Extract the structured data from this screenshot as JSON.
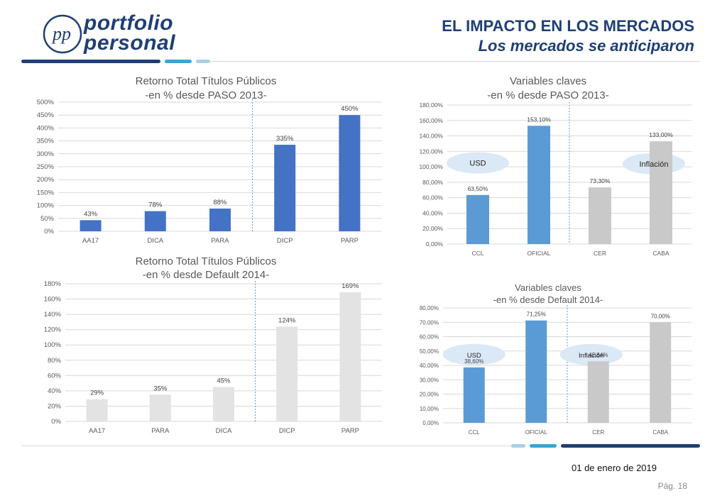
{
  "header": {
    "logo_line1": "portfolio",
    "logo_line2": "personal",
    "logo_monogram": "pp",
    "title": "EL IMPACTO EN LOS MERCADOS",
    "subtitle": "Los mercados se anticiparon"
  },
  "footer": {
    "date": "01 de enero de 2019",
    "page": "Pág. 18"
  },
  "colors": {
    "brand_dark": "#1f3f74",
    "brand_light": "#3ba3d9",
    "brand_pale": "#a9cfe4",
    "bar_blue": "#5b9bd5",
    "bar_gray": "#c9c9c9",
    "bar_lightgray": "#e3e3e3",
    "bubble": "#dbe8f6"
  },
  "chart_data": [
    {
      "type": "bar",
      "title": "Retorno Total Títulos Públicos",
      "subtitle": "-en % desde PASO 2013-",
      "categories": [
        "AA17",
        "DICA",
        "PARA",
        "DICP",
        "PARP"
      ],
      "values": [
        43,
        78,
        88,
        335,
        450
      ],
      "value_labels": [
        "43%",
        "78%",
        "88%",
        "335%",
        "450%"
      ],
      "ylim": [
        0,
        500
      ],
      "yticks": [
        "0%",
        "50%",
        "100%",
        "150%",
        "200%",
        "250%",
        "300%",
        "350%",
        "400%",
        "450%",
        "500%"
      ],
      "grid": true,
      "color": "#4472c4",
      "divider_between": [
        2,
        3
      ],
      "bubbles": []
    },
    {
      "type": "bar",
      "title": "Variables claves",
      "subtitle": "-en % desde PASO 2013-",
      "categories": [
        "CCL",
        "OFICIAL",
        "CER",
        "CABA"
      ],
      "values": [
        63.5,
        153.1,
        73.3,
        133.0
      ],
      "value_labels": [
        "63,50%",
        "153,10%",
        "73,30%",
        "133,00%"
      ],
      "ylim": [
        0,
        180
      ],
      "yticks": [
        "0,00%",
        "20,00%",
        "40,00%",
        "60,00%",
        "80,00%",
        "100,00%",
        "120,00%",
        "140,00%",
        "160,00%",
        "180,00%"
      ],
      "grid": true,
      "colors": [
        "#5b9bd5",
        "#5b9bd5",
        "#c9c9c9",
        "#c9c9c9"
      ],
      "divider_between": [
        1,
        2
      ],
      "bubbles": [
        {
          "label": "USD",
          "category_index": 0,
          "value": 105
        },
        {
          "label": "Inflación",
          "category_index": 3,
          "value": 104
        }
      ]
    },
    {
      "type": "bar",
      "title": "Retorno Total Títulos Públicos",
      "subtitle": "-en % desde Default 2014-",
      "categories": [
        "AA17",
        "PARA",
        "DICA",
        "DICP",
        "PARP"
      ],
      "values": [
        29,
        35,
        45,
        124,
        169
      ],
      "value_labels": [
        "29%",
        "35%",
        "45%",
        "124%",
        "169%"
      ],
      "ylim": [
        0,
        180
      ],
      "yticks": [
        "0%",
        "20%",
        "40%",
        "60%",
        "80%",
        "100%",
        "120%",
        "140%",
        "160%",
        "180%"
      ],
      "grid": true,
      "color": "#e3e3e3",
      "divider_between": [
        2,
        3
      ],
      "bubbles": []
    },
    {
      "type": "bar",
      "title": "Variables claves",
      "subtitle": "-en % desde Default 2014-",
      "categories": [
        "CCL",
        "OFICIAL",
        "CER",
        "CABA"
      ],
      "values": [
        38.6,
        71.25,
        42.84,
        70.0
      ],
      "value_labels": [
        "38,60%",
        "71,25%",
        "42,84%",
        "70,00%"
      ],
      "ylim": [
        0,
        80
      ],
      "yticks": [
        "0,00%",
        "10,00%",
        "20,00%",
        "30,00%",
        "40,00%",
        "50,00%",
        "60,00%",
        "70,00%",
        "80,00%"
      ],
      "grid": true,
      "colors": [
        "#5b9bd5",
        "#5b9bd5",
        "#c9c9c9",
        "#c9c9c9"
      ],
      "divider_between": [
        1,
        2
      ],
      "bubbles": [
        {
          "label": "USD",
          "category_index": 0,
          "value": 47.5
        },
        {
          "label": "Inflación",
          "category_index": 2,
          "value": 47.5
        }
      ]
    }
  ]
}
